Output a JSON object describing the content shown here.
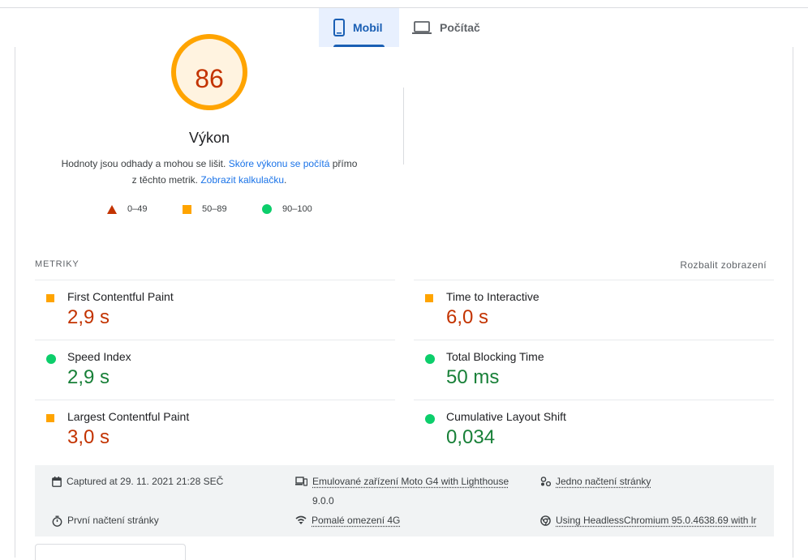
{
  "tabs": {
    "mobile": {
      "label": "Mobil",
      "icon": "smartphone-icon"
    },
    "desktop": {
      "label": "Počítač",
      "icon": "laptop-icon"
    }
  },
  "summary": {
    "score": "86",
    "title": "Výkon",
    "desc_part1": "Hodnoty jsou odhady a mohou se lišit. ",
    "desc_link1": "Skóre výkonu se počítá",
    "desc_part2": " přímo",
    "desc_part3": "z těchto metrik. ",
    "desc_link2": "Zobrazit kalkulačku",
    "desc_part4": "."
  },
  "legend": [
    {
      "range": "0–49",
      "icon": "fail-triangle-icon",
      "color": "#c33300"
    },
    {
      "range": "50–89",
      "icon": "average-square-icon",
      "color": "#ffa400"
    },
    {
      "range": "90–100",
      "icon": "pass-circle-icon",
      "color": "#0cce6b"
    }
  ],
  "metrics": {
    "heading": "METRIKY",
    "expand_label": "Rozbalit zobrazení",
    "items": [
      {
        "name": "First Contentful Paint",
        "value": "2,9 s",
        "rating": "average"
      },
      {
        "name": "Time to Interactive",
        "value": "6,0 s",
        "rating": "average"
      },
      {
        "name": "Speed Index",
        "value": "2,9 s",
        "rating": "pass"
      },
      {
        "name": "Total Blocking Time",
        "value": "50 ms",
        "rating": "pass"
      },
      {
        "name": "Largest Contentful Paint",
        "value": "3,0 s",
        "rating": "average"
      },
      {
        "name": "Cumulative Layout Shift",
        "value": "0,034",
        "rating": "pass"
      }
    ]
  },
  "run_info": {
    "captured": "Captured at 29. 11. 2021 21:28 SEČ",
    "device_line1": "Emulované zařízení Moto G4 with Lighthouse",
    "device_line2": "9.0.0",
    "session": "Jedno načtení stránky",
    "load": "První načtení stránky",
    "throttling": "Pomalé omezení 4G",
    "browser": "Using HeadlessChromium 95.0.4638.69 with lr"
  },
  "colors": {
    "accent": "#1a5fb4",
    "fail": "#c33300",
    "average": "#ffa400",
    "pass": "#0cce6b"
  }
}
